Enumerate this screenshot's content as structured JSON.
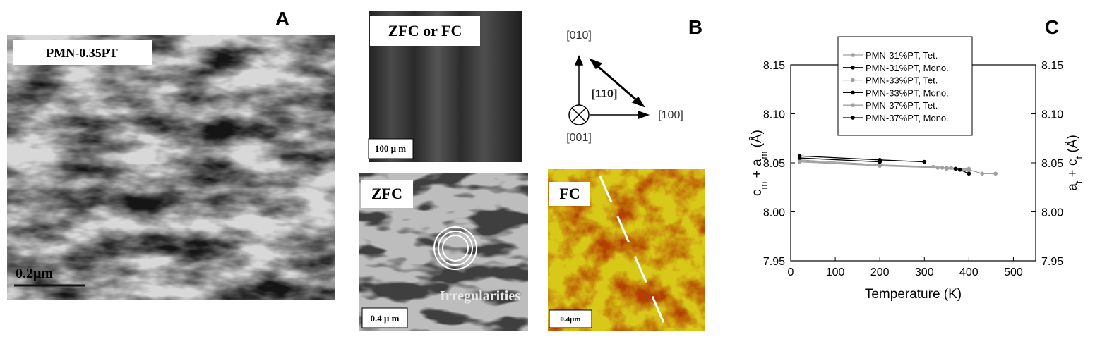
{
  "panel_a": {
    "label": "A",
    "caption": "PMN-0.35PT",
    "scale_bar": "0.2μm"
  },
  "panel_b": {
    "label": "B",
    "top": {
      "caption": "ZFC or FC",
      "scale_bar": "100 μ m"
    },
    "axes": {
      "y": "[010]",
      "diagonal": "[110]",
      "x": "[100]",
      "z": "[001]"
    },
    "bottom_left": {
      "caption": "ZFC",
      "annotation": "Irregularities",
      "scale_bar": "0.4 μ m"
    },
    "bottom_right": {
      "caption": "FC",
      "scale_bar": "0.4μm"
    }
  },
  "panel_c": {
    "label": "C"
  },
  "chart_data": {
    "type": "line",
    "xlabel": "Temperature (K)",
    "ylabel": [
      "c",
      "m",
      " + a",
      "m",
      " (Å)"
    ],
    "y2label": [
      "a",
      "t",
      " + c",
      "t",
      " (Å)"
    ],
    "xlim": [
      0,
      550
    ],
    "xticks": [
      0,
      100,
      200,
      300,
      400,
      500
    ],
    "ylim": [
      7.95,
      8.15
    ],
    "yticks": [
      7.95,
      {
        "value": 8,
        "label": "8.00"
      },
      8.05,
      {
        "value": 8.1,
        "label": "8.10"
      },
      8.15
    ],
    "y2lim": [
      7.95,
      8.15
    ],
    "y2ticks": [
      7.95,
      {
        "value": 8,
        "label": "8.00"
      },
      8.05,
      {
        "value": 8.1,
        "label": "8.10"
      },
      8.15
    ],
    "series": [
      {
        "name": "PMN-31%PT, Tet.",
        "color": "#a0a0a0",
        "x": [
          20,
          200,
          330,
          350,
          380,
          400
        ],
        "values": [
          8.052,
          8.047,
          8.045,
          8.044,
          8.043,
          8.042
        ]
      },
      {
        "name": "PMN-31%PT, Mono.",
        "color": "#000000",
        "x": [
          20,
          200,
          300
        ],
        "values": [
          8.057,
          8.053,
          8.051
        ]
      },
      {
        "name": "PMN-33%PT, Tet.",
        "color": "#a0a0a0",
        "x": [
          20,
          200,
          320,
          340,
          360,
          400,
          430,
          460
        ],
        "values": [
          8.053,
          8.048,
          8.046,
          8.045,
          8.045,
          8.043,
          8.039,
          8.039
        ]
      },
      {
        "name": "PMN-33%PT, Mono.",
        "color": "#000000",
        "x": [
          20,
          200
        ],
        "values": [
          8.055,
          8.051
        ]
      },
      {
        "name": "PMN-37%PT, Tet.",
        "color": "#a0a0a0",
        "x": [
          20,
          200,
          350,
          400
        ],
        "values": [
          8.051,
          8.047,
          8.045,
          8.044
        ]
      },
      {
        "name": "PMN-37%PT, Mono.",
        "color": "#000000",
        "x": [
          370,
          380,
          400
        ],
        "values": [
          8.044,
          8.043,
          8.039
        ]
      }
    ]
  }
}
